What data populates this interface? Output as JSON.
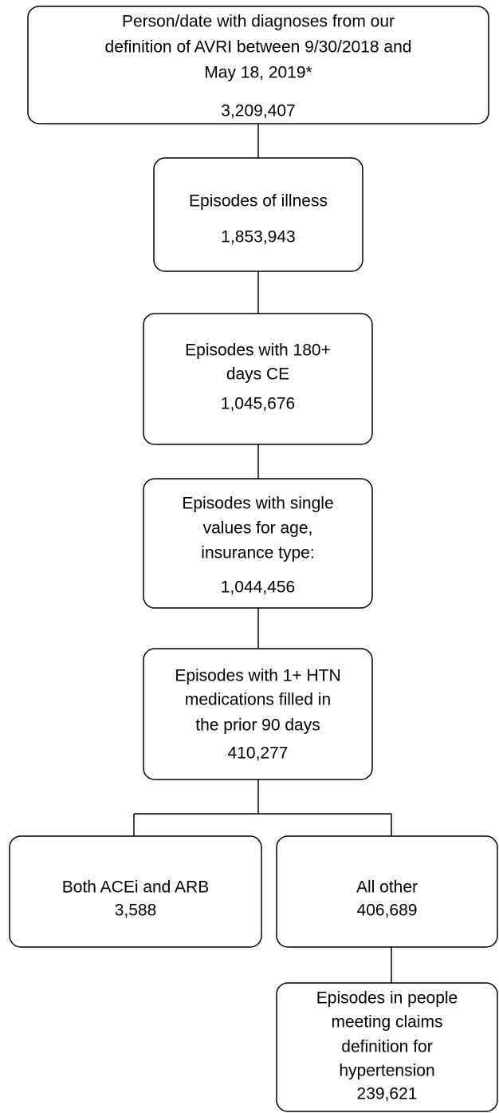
{
  "nodes": [
    {
      "lines": [
        "Person/date with diagnoses from our",
        "definition of AVRI between 9/30/2018 and",
        "May 18, 2019*"
      ],
      "count": "3,209,407"
    },
    {
      "lines": [
        "Episodes of illness"
      ],
      "count": "1,853,943"
    },
    {
      "lines": [
        "Episodes with 180+",
        "days CE"
      ],
      "count": "1,045,676"
    },
    {
      "lines": [
        "Episodes with single",
        "values for age,",
        "insurance type:"
      ],
      "count": "1,044,456"
    },
    {
      "lines": [
        "Episodes with 1+ HTN",
        "medications filled in",
        "the prior 90 days"
      ],
      "count": "410,277"
    },
    {
      "lines": [
        "Both ACEi and ARB"
      ],
      "count": "3,588"
    },
    {
      "lines": [
        "All other"
      ],
      "count": "406,689"
    },
    {
      "lines": [
        "Episodes in people",
        "meeting claims",
        "definition for",
        "hypertension"
      ],
      "count": "239,621"
    }
  ]
}
